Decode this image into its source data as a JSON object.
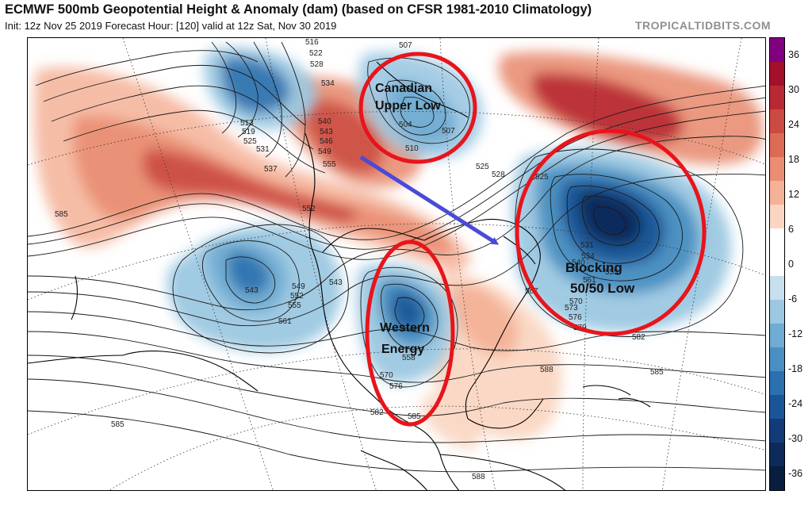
{
  "header": {
    "title": "ECMWF 500mb Geopotential Height & Anomaly (dam) (based on CFSR 1981-2010 Climatology)",
    "subtitle": "Init: 12z Nov 25 2019   Forecast Hour: [120]   valid at 12z Sat, Nov 30 2019",
    "brand": "TROPICALTIDBITS.COM"
  },
  "colorbar": {
    "ticks": [
      "36",
      "30",
      "24",
      "18",
      "12",
      "6",
      "0",
      "-6",
      "-12",
      "-18",
      "-24",
      "-30",
      "-36"
    ],
    "colors": [
      "#800080",
      "#a2102a",
      "#b82a33",
      "#cb4a42",
      "#dc6b55",
      "#e98e72",
      "#f4b297",
      "#fad6c2",
      "#ffffff",
      "#ffffff",
      "#c7dfee",
      "#9cc8e2",
      "#6fabd2",
      "#4a8fc1",
      "#2c71ae",
      "#1a5597",
      "#123b78",
      "#0d2a58",
      "#091d3e"
    ]
  },
  "annotations": {
    "canadian_low": {
      "line1": "Canadian",
      "line2": "Upper Low"
    },
    "western_energy": {
      "line1": "Western",
      "line2": "Energy"
    },
    "blocking": {
      "line1": "Blocking",
      "line2": "50/50 Low"
    }
  },
  "contour_labels": [
    "516",
    "507",
    "522",
    "528",
    "534",
    "513",
    "519",
    "525",
    "531",
    "540",
    "543",
    "546",
    "549",
    "537",
    "555",
    "552",
    "585",
    "543",
    "549",
    "552",
    "555",
    "561",
    "543",
    "504",
    "507",
    "510",
    "525",
    "528",
    "525",
    "531",
    "534",
    "540",
    "555",
    "561",
    "567",
    "570",
    "573",
    "576",
    "579",
    "582",
    "558",
    "570",
    "576",
    "582",
    "585",
    "588",
    "585",
    "588",
    "585"
  ],
  "colors": {
    "annotation_circle": "#e8141c",
    "arrow": "#4a4ad8",
    "anomaly_positive": "#dc6b55",
    "anomaly_negative": "#2c71ae"
  }
}
